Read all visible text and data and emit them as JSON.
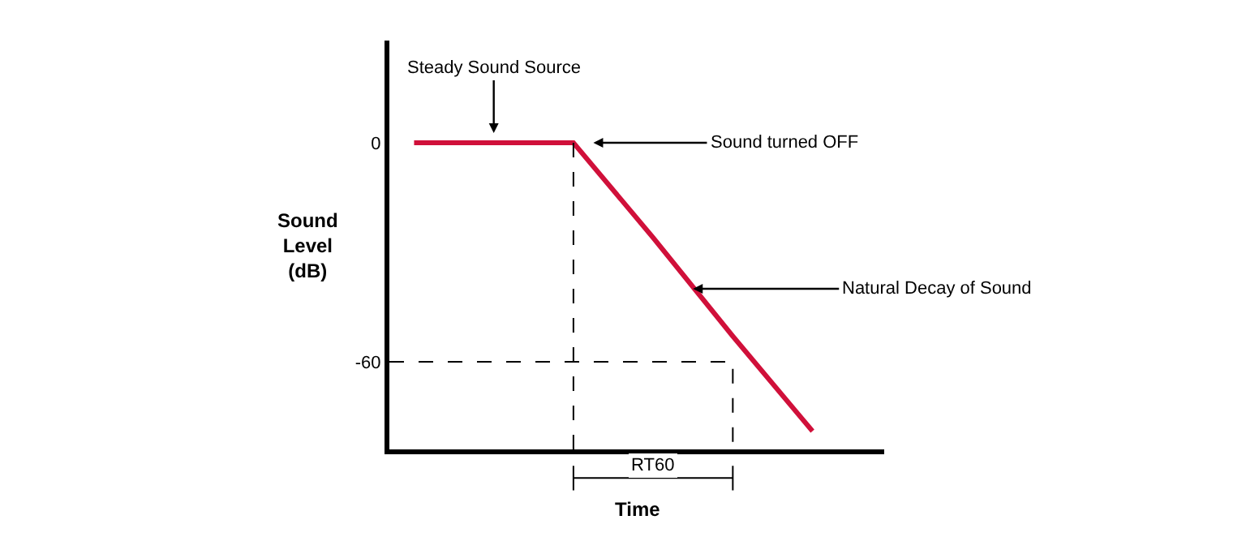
{
  "chart_data": {
    "type": "line",
    "xlabel": "Time",
    "ylabel": "Sound Level (dB)",
    "categories": [
      null,
      null,
      null,
      null,
      null,
      null
    ],
    "series": [
      {
        "color": "#d0103a",
        "values": [
          0,
          0,
          0,
          -26,
          -53,
          -79
        ]
      }
    ],
    "ylim": [
      -84,
      28
    ],
    "yticks": [
      0,
      -60
    ],
    "legend": false,
    "marker": "none",
    "line_style": "solid",
    "tick_labels": "y",
    "ref_lines": [
      {
        "axis": "y",
        "value": -60,
        "color": "#000000",
        "line_style": "dashed"
      }
    ],
    "annotations": [
      "Steady Sound Source",
      "Sound turned OFF",
      "Natural Decay of Sound",
      "RT60"
    ]
  }
}
